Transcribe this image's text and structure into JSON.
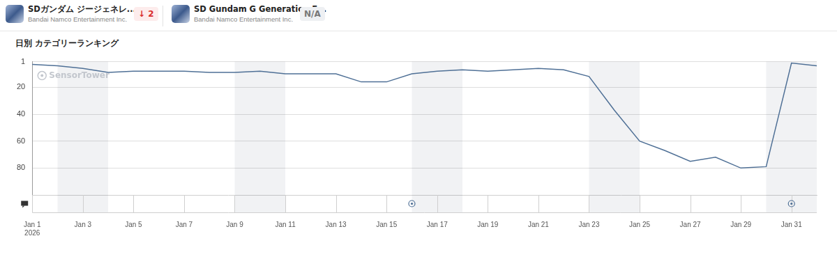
{
  "header": {
    "apps": [
      {
        "name": "SDガンダム ジージェネレ...",
        "publisher": "Bandai Namco Entertainment Inc.",
        "change": "↓ 2"
      },
      {
        "name": "SD Gundam G Generation E...",
        "publisher": "Bandai Namco Entertainment Inc.",
        "change": "N/A"
      }
    ]
  },
  "chart_data": {
    "type": "line",
    "title": "日別 カテゴリーランキング",
    "watermark": "SensorTower",
    "categories": [
      "Jan 1",
      null,
      "Jan 3",
      null,
      "Jan 5",
      null,
      "Jan 7",
      null,
      "Jan 9",
      null,
      "Jan 11",
      null,
      "Jan 13",
      null,
      "Jan 15",
      null,
      "Jan 17",
      null,
      "Jan 19",
      null,
      "Jan 21",
      null,
      "Jan 23",
      null,
      "Jan 25",
      null,
      "Jan 27",
      null,
      "Jan 29",
      null,
      "Jan 31",
      null
    ],
    "year_label": "2026",
    "values": [
      3,
      4,
      6,
      9,
      8,
      8,
      8,
      9,
      9,
      8,
      10,
      10,
      10,
      16,
      16,
      10,
      8,
      7,
      8,
      7,
      6,
      7,
      12,
      37,
      60,
      67,
      75,
      72,
      80,
      79,
      2,
      4
    ],
    "event_markers": [
      null,
      null,
      null,
      null,
      null,
      null,
      null,
      null,
      null,
      null,
      null,
      null,
      null,
      null,
      null,
      true,
      null,
      null,
      null,
      null,
      null,
      null,
      null,
      null,
      null,
      null,
      null,
      null,
      null,
      null,
      true,
      null
    ],
    "color": "#4f7096",
    "ylim": [
      1,
      100
    ],
    "yticks": [
      1,
      20,
      40,
      60,
      80
    ],
    "grid": true
  }
}
